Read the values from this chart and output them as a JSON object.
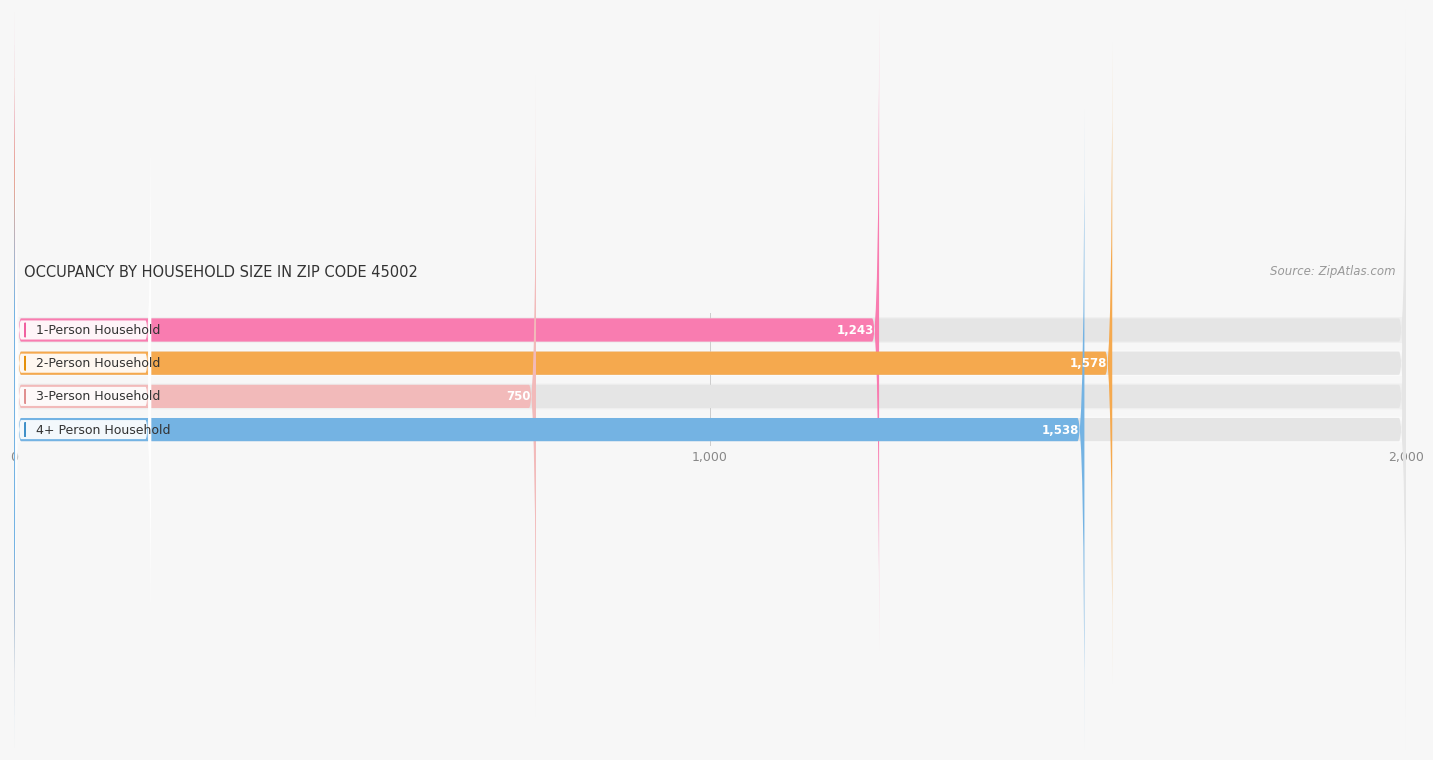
{
  "title": "OCCUPANCY BY HOUSEHOLD SIZE IN ZIP CODE 45002",
  "source": "Source: ZipAtlas.com",
  "categories": [
    "1-Person Household",
    "2-Person Household",
    "3-Person Household",
    "4+ Person Household"
  ],
  "values": [
    1243,
    1578,
    750,
    1538
  ],
  "bar_colors": [
    "#F97CB0",
    "#F5A94E",
    "#F2BABA",
    "#74B3E3"
  ],
  "label_dot_colors": [
    "#F060A0",
    "#E5900A",
    "#E09090",
    "#4090C8"
  ],
  "row_bg_colors": [
    "#f0f0f0",
    "#fafafa",
    "#f0f0f0",
    "#fafafa"
  ],
  "xlim": [
    0,
    2000
  ],
  "xticks": [
    0,
    1000,
    2000
  ],
  "xticklabels": [
    "0",
    "1,000",
    "2,000"
  ],
  "title_fontsize": 10.5,
  "source_fontsize": 8.5,
  "tick_fontsize": 9,
  "bar_label_fontsize": 8.5,
  "category_fontsize": 9,
  "background_color": "#f7f7f7",
  "bar_track_color": "#e5e5e5",
  "value_label_color_inside": "#ffffff",
  "value_label_color_outside": "#555555"
}
